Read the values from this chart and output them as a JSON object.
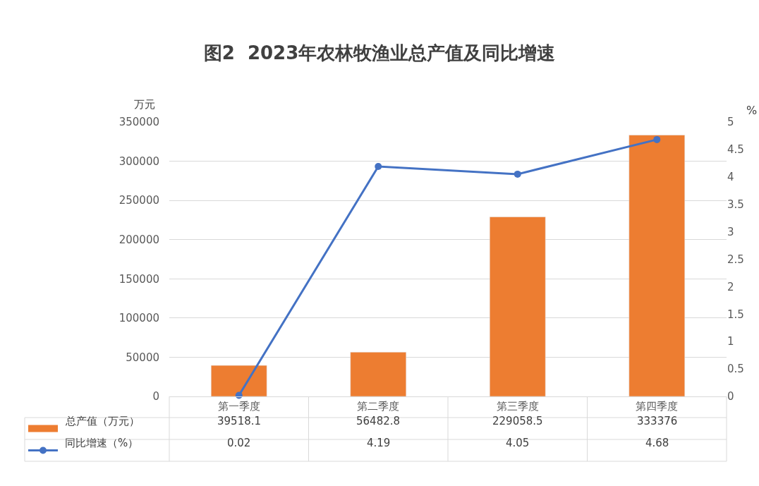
{
  "chart_data": {
    "type": "bar",
    "title": "图2  2023年农林牧渔业总产值及同比增速",
    "ylabel": "万元",
    "y2label": "%",
    "categories": [
      "第一季度",
      "第二季度",
      "第三季度",
      "第四季度"
    ],
    "series": [
      {
        "name": "总产值（万元）",
        "color": "#ed7d31",
        "values": [
          39518.1,
          56482.8,
          229058.5,
          333376
        ]
      },
      {
        "name": "同比增速（%）",
        "type": "line",
        "axis": "y2",
        "color": "#4472c4",
        "marker": "circle",
        "values": [
          0.02,
          4.19,
          4.05,
          4.68
        ]
      }
    ],
    "ylim": [
      0,
      350000
    ],
    "yticks": [
      0,
      50000,
      100000,
      150000,
      200000,
      250000,
      300000,
      350000
    ],
    "y2lim": [
      0,
      5
    ],
    "y2ticks": [
      0,
      0.5,
      1,
      1.5,
      2,
      2.5,
      3,
      3.5,
      4,
      4.5,
      5
    ],
    "grid": "y",
    "legend": "bottom",
    "data_labels": true
  }
}
